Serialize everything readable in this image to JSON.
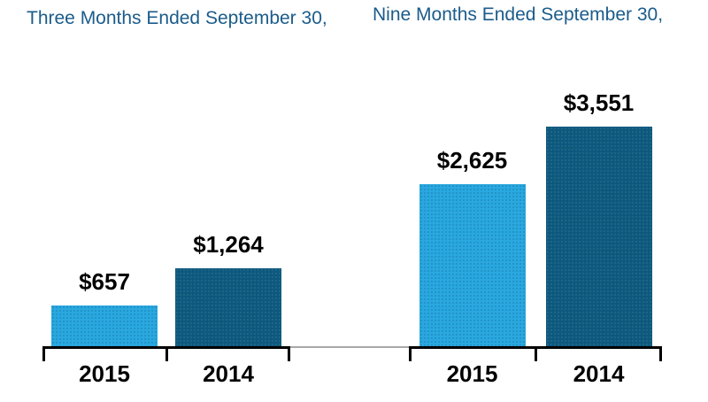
{
  "page": {
    "background": "#ffffff"
  },
  "styles": {
    "title_color": "#1B5C8B",
    "bar_color_2015": "#29A8E0",
    "bar_color_2014": "#0E587E",
    "label_color": "#000000",
    "axis_color": "#000000",
    "connector_color": "#A8A8A8"
  },
  "chart_data": [
    {
      "type": "bar",
      "title": "Three Months Ended September 30,",
      "categories": [
        "2015",
        "2014"
      ],
      "values": [
        657,
        1264
      ],
      "data_labels": [
        "$657",
        "$1,264"
      ],
      "bar_colors": [
        "#29A8E0",
        "#0E587E"
      ],
      "ylim": [
        0,
        3551
      ],
      "grid": false,
      "legend": false
    },
    {
      "type": "bar",
      "title": "Nine Months Ended September 30,",
      "categories": [
        "2015",
        "2014"
      ],
      "values": [
        2625,
        3551
      ],
      "data_labels": [
        "$2,625",
        "$3,551"
      ],
      "bar_colors": [
        "#29A8E0",
        "#0E587E"
      ],
      "ylim": [
        0,
        3551
      ],
      "grid": false,
      "legend": false
    }
  ]
}
